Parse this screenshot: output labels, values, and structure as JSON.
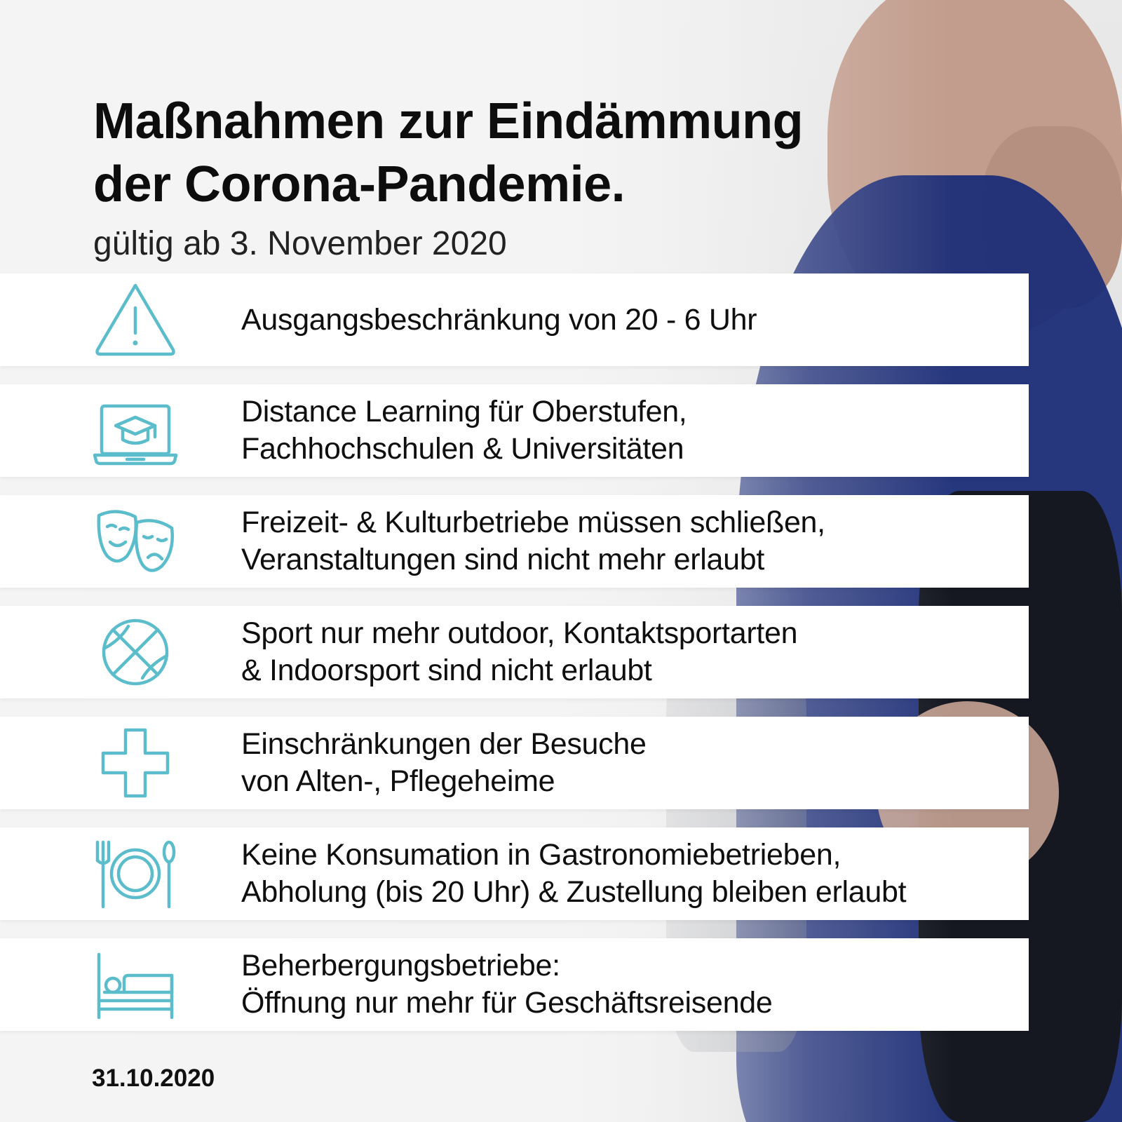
{
  "header": {
    "title_line1": "Maßnahmen zur Eindämmung",
    "title_line2": "der Corona-Pandemie.",
    "subtitle": "gültig ab 3. November 2020"
  },
  "measures": [
    {
      "icon": "warning-triangle-icon",
      "line1": "Ausgangsbeschränkung von 20 - 6 Uhr",
      "line2": ""
    },
    {
      "icon": "graduation-laptop-icon",
      "line1": "Distance Learning für Oberstufen,",
      "line2": "Fachhochschulen & Universitäten"
    },
    {
      "icon": "theater-masks-icon",
      "line1": "Freizeit- & Kulturbetriebe müssen schließen,",
      "line2": "Veranstaltungen sind nicht mehr erlaubt"
    },
    {
      "icon": "basketball-icon",
      "line1": "Sport nur mehr outdoor, Kontaktsportarten",
      "line2": "& Indoorsport sind nicht erlaubt"
    },
    {
      "icon": "medical-cross-icon",
      "line1": "Einschränkungen der Besuche",
      "line2": "von Alten-, Pflegeheime"
    },
    {
      "icon": "plate-cutlery-icon",
      "line1": "Keine Konsumation in Gastronomiebetrieben,",
      "line2": "Abholung (bis 20 Uhr) & Zustellung bleiben erlaubt"
    },
    {
      "icon": "bed-icon",
      "line1": "Beherbergungsbetriebe:",
      "line2": "Öffnung nur mehr für Geschäftsreisende"
    }
  ],
  "footer": {
    "date": "31.10.2020"
  },
  "colors": {
    "icon_accent": "#5bbdcb",
    "row_background": "#ffffff",
    "text": "#0f0f0f"
  }
}
